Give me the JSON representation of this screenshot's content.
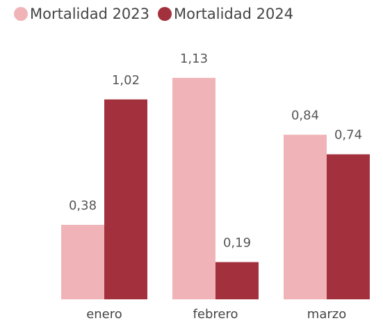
{
  "chart_data": {
    "type": "bar",
    "categories": [
      "enero",
      "febrero",
      "marzo"
    ],
    "series": [
      {
        "name": "Mortalidad 2023",
        "color": "#f0b4b8",
        "values": [
          0.38,
          1.13,
          0.84
        ],
        "value_labels": [
          "0,38",
          "1,13",
          "0,84"
        ]
      },
      {
        "name": "Mortalidad 2024",
        "color": "#a3313d",
        "values": [
          1.02,
          0.19,
          0.74
        ],
        "value_labels": [
          "1,02",
          "0,19",
          "0,74"
        ]
      }
    ],
    "ylim": [
      0,
      1.3
    ],
    "legend": "top-left"
  }
}
